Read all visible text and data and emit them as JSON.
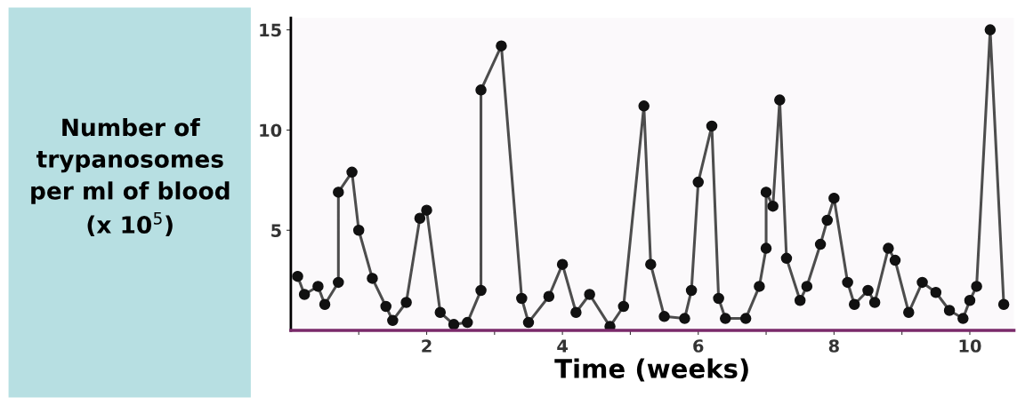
{
  "chart_data": {
    "type": "line",
    "xlabel": "Time (weeks)",
    "ylabel": "Number of\ntrypanosomes\nper ml of blood\n(x 10$^{5}$)",
    "x": [
      0.1,
      0.2,
      0.4,
      0.5,
      0.7,
      0.7,
      0.9,
      1.0,
      1.2,
      1.4,
      1.5,
      1.7,
      1.9,
      2.0,
      2.2,
      2.4,
      2.6,
      2.8,
      2.8,
      3.1,
      3.4,
      3.5,
      3.8,
      4.0,
      4.2,
      4.4,
      4.7,
      4.9,
      5.2,
      5.3,
      5.5,
      5.8,
      5.9,
      6.0,
      6.2,
      6.3,
      6.4,
      6.7,
      6.9,
      7.0,
      7.0,
      7.1,
      7.2,
      7.3,
      7.5,
      7.6,
      7.8,
      7.9,
      8.0,
      8.2,
      8.3,
      8.5,
      8.6,
      8.8,
      8.9,
      9.1,
      9.3,
      9.5,
      9.7,
      9.9,
      10.0,
      10.1,
      10.3,
      10.5
    ],
    "series": [
      {
        "color": "#4d4d4d",
        "values": [
          2.7,
          1.8,
          2.2,
          1.3,
          2.4,
          6.9,
          7.9,
          5.0,
          2.6,
          1.2,
          0.5,
          1.4,
          5.6,
          6.0,
          0.9,
          0.3,
          0.4,
          2.0,
          12.0,
          14.2,
          1.6,
          0.4,
          1.7,
          3.3,
          0.9,
          1.8,
          0.2,
          1.2,
          11.2,
          3.3,
          0.7,
          0.6,
          2.0,
          7.4,
          10.2,
          1.6,
          0.6,
          0.6,
          2.2,
          4.1,
          6.9,
          6.2,
          11.5,
          3.6,
          1.5,
          2.2,
          4.3,
          5.5,
          6.6,
          2.4,
          1.3,
          2.0,
          1.4,
          4.1,
          3.5,
          0.9,
          2.4,
          1.9,
          1.0,
          0.6,
          1.5,
          2.2,
          15.0,
          1.3
        ]
      }
    ],
    "marker": "circle",
    "line_style": "solid",
    "grid": false,
    "legend": false,
    "xlim": [
      0,
      10.65
    ],
    "ylim": [
      0,
      15.6
    ],
    "xticks": [
      {
        "value": 1,
        "label": null
      },
      2,
      {
        "value": 3,
        "label": null
      },
      4,
      {
        "value": 5,
        "label": null
      },
      6,
      {
        "value": 7,
        "label": null
      },
      8,
      {
        "value": 9,
        "label": null
      },
      10
    ],
    "yticks": [
      5,
      10,
      15
    ]
  }
}
